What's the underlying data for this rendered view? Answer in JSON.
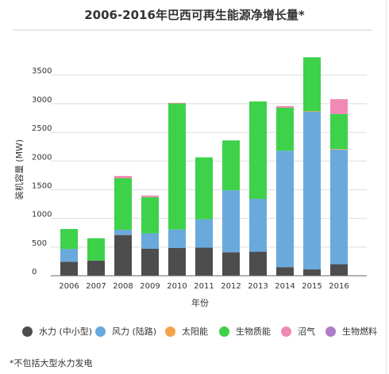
{
  "chart_data": {
    "type": "bar",
    "stacked": true,
    "title": "2006-2016年巴西可再生能源净增长量*",
    "xlabel": "年份",
    "ylabel": "装机容量 (MW)",
    "ylim": [
      0,
      3800
    ],
    "yticks": [
      0,
      500,
      1000,
      1500,
      2000,
      2500,
      3000,
      3500
    ],
    "grid": true,
    "legend_position": "bottom",
    "categories": [
      "2006",
      "2007",
      "2008",
      "2009",
      "2010",
      "2011",
      "2012",
      "2013",
      "2014",
      "2015",
      "2016"
    ],
    "series": [
      {
        "name": "水力 (中小型)",
        "color": "#4d4d4d",
        "values": [
          245,
          265,
          710,
          470,
          485,
          490,
          410,
          420,
          150,
          110,
          200
        ]
      },
      {
        "name": "风力 (陆路)",
        "color": "#6aa9dc",
        "values": [
          220,
          0,
          90,
          270,
          320,
          495,
          1080,
          920,
          2030,
          2750,
          2000
        ]
      },
      {
        "name": "太阳能",
        "color": "#f5a34a",
        "values": [
          0,
          0,
          0,
          0,
          0,
          0,
          0,
          0,
          0,
          10,
          10
        ]
      },
      {
        "name": "生物质能",
        "color": "#3ed24a",
        "values": [
          350,
          390,
          900,
          630,
          2200,
          1080,
          870,
          1700,
          750,
          940,
          610
        ]
      },
      {
        "name": "沼气",
        "color": "#f08ab5",
        "values": [
          0,
          0,
          40,
          30,
          10,
          0,
          0,
          0,
          30,
          0,
          260
        ]
      },
      {
        "name": "生物燃料",
        "color": "#b07cc8",
        "values": [
          0,
          0,
          0,
          0,
          0,
          0,
          0,
          0,
          0,
          0,
          0
        ]
      }
    ],
    "footnote": "*不包括大型水力发电"
  }
}
